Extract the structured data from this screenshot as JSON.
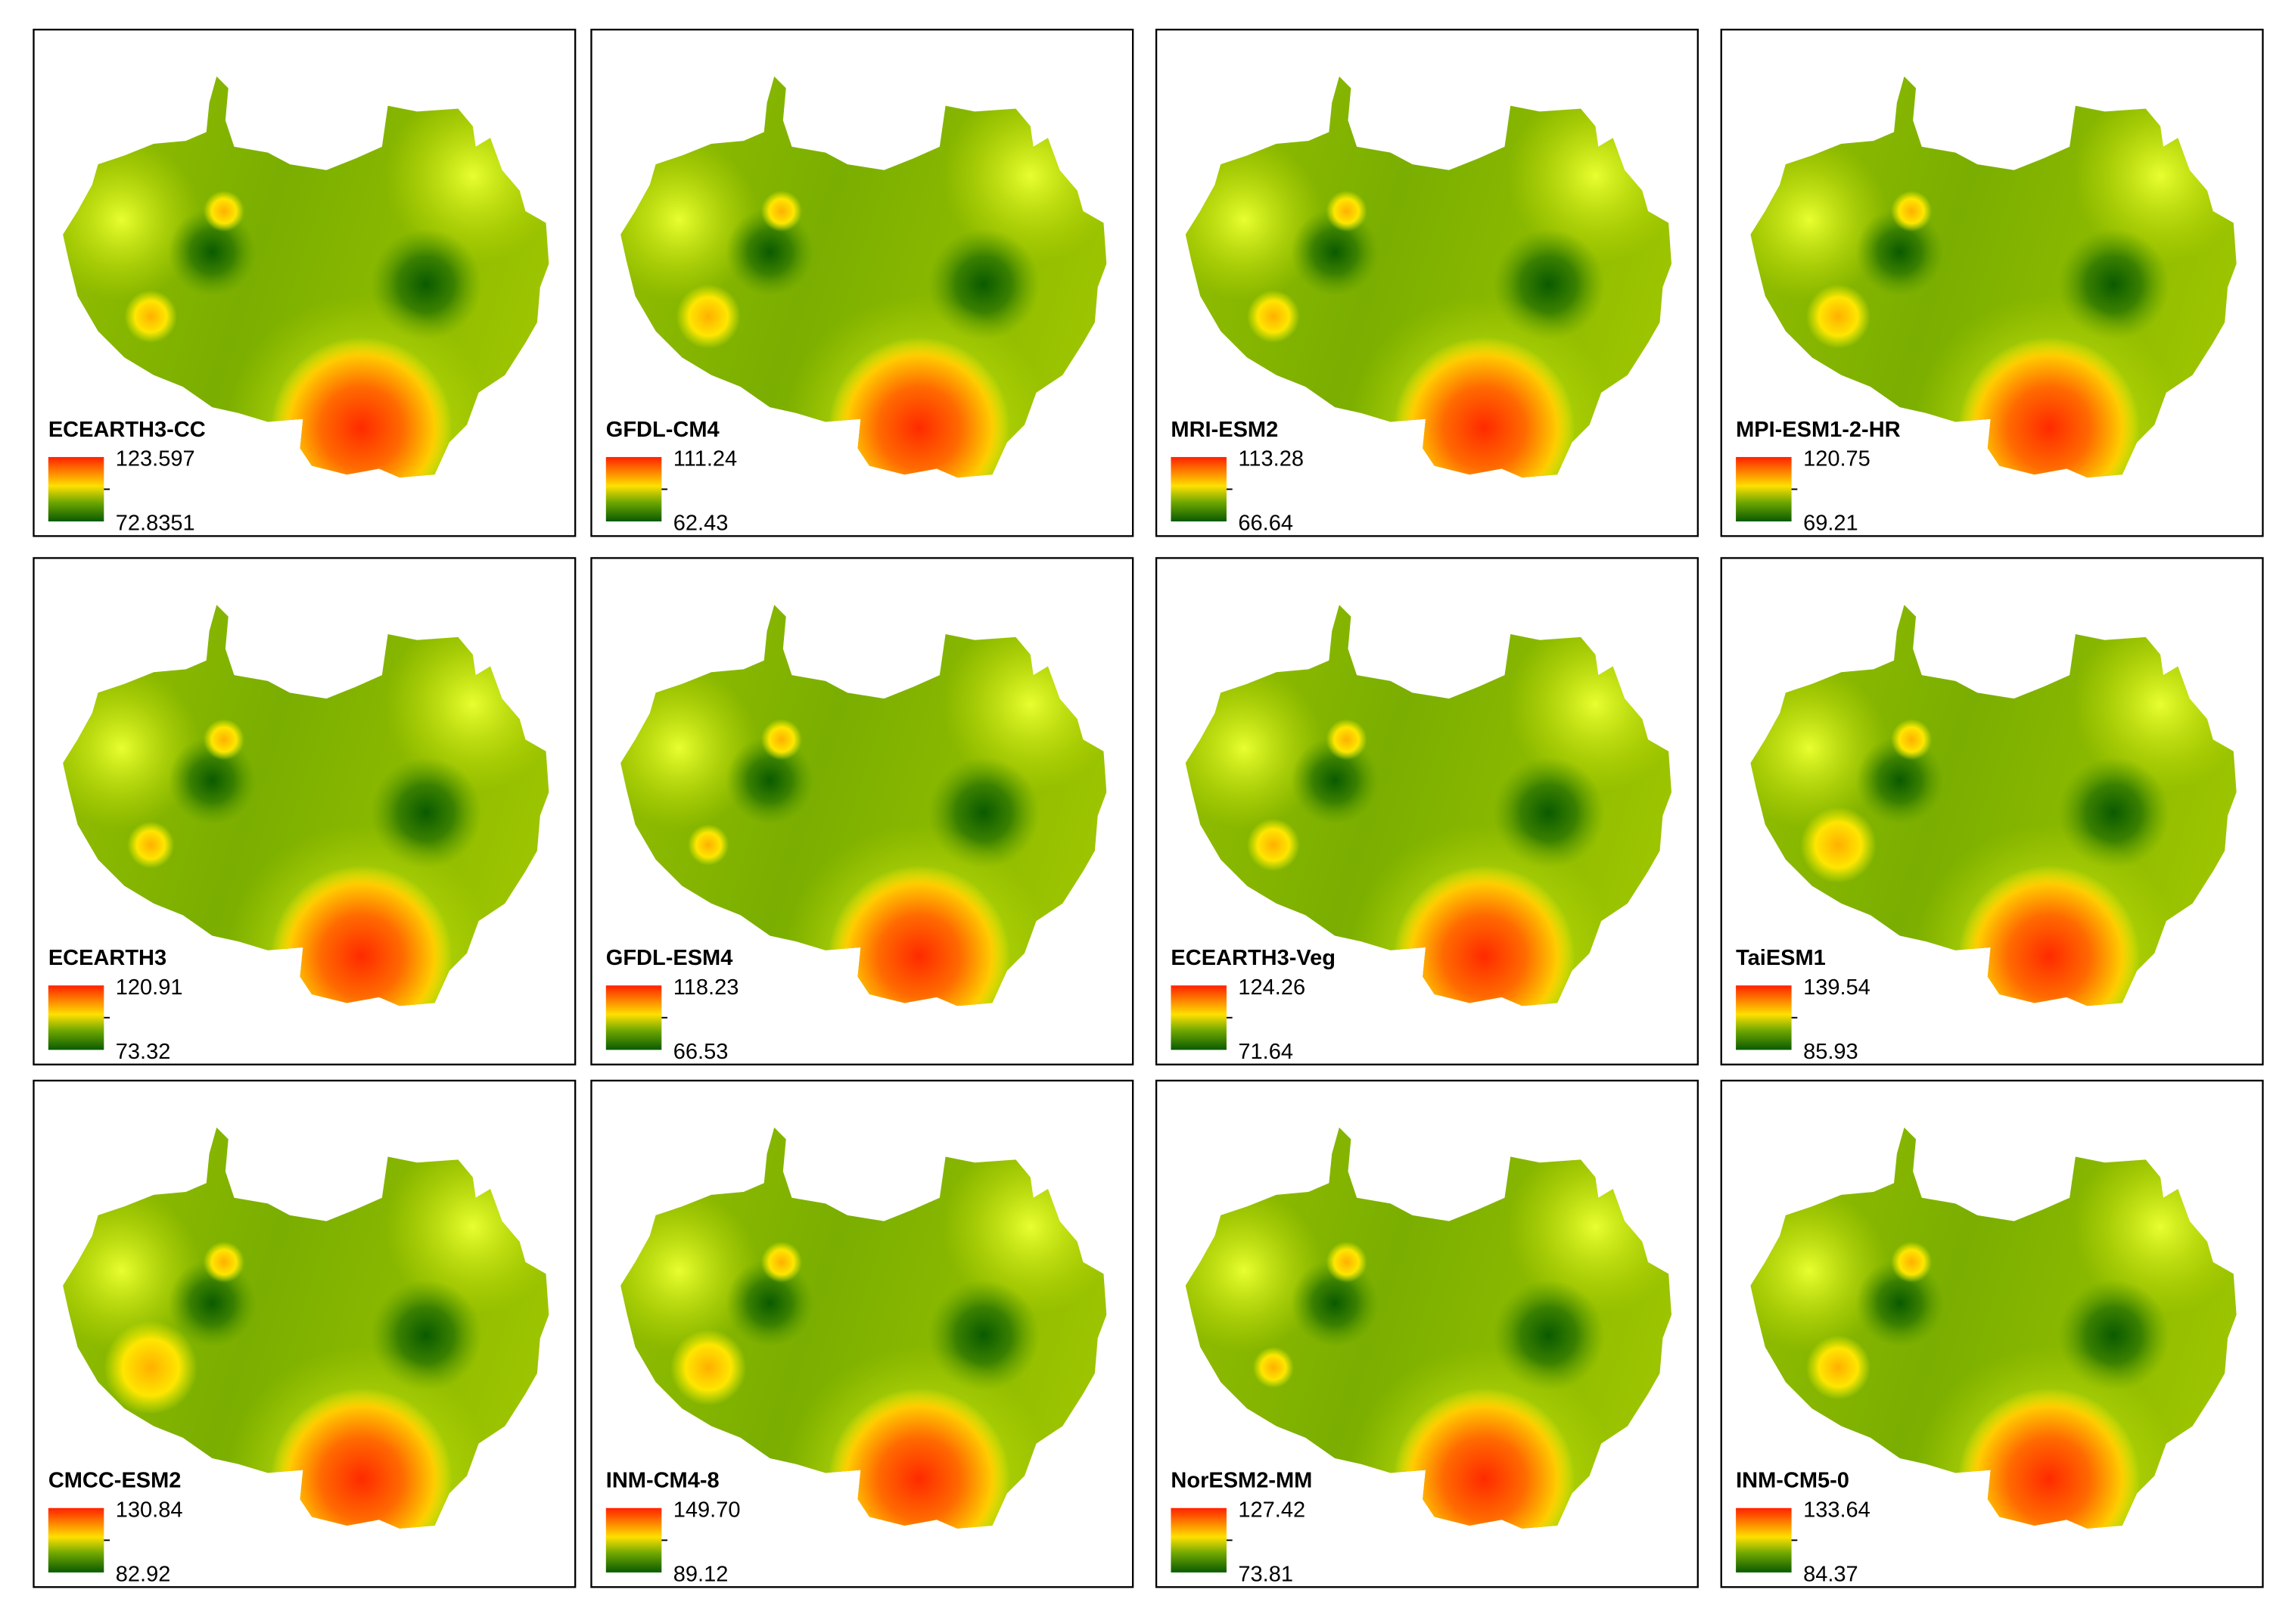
{
  "panels": [
    {
      "title": "ECEARTH3-CC",
      "max": "123.597",
      "min": "72.8351"
    },
    {
      "title": "GFDL-CM4",
      "max": "111.24",
      "min": "62.43"
    },
    {
      "title": "MRI-ESM2",
      "max": "113.28",
      "min": "66.64"
    },
    {
      "title": "MPI-ESM1-2-HR",
      "max": "120.75",
      "min": "69.21"
    },
    {
      "title": "ECEARTH3",
      "max": "120.91",
      "min": "73.32"
    },
    {
      "title": "GFDL-ESM4",
      "max": "118.23",
      "min": "66.53"
    },
    {
      "title": "ECEARTH3-Veg",
      "max": "124.26",
      "min": "71.64"
    },
    {
      "title": "TaiESM1",
      "max": "139.54",
      "min": "85.93"
    },
    {
      "title": "CMCC-ESM2",
      "max": "130.84",
      "min": "82.92"
    },
    {
      "title": "INM-CM4-8",
      "max": "149.70",
      "min": "89.12"
    },
    {
      "title": "NorESM2-MM",
      "max": "127.42",
      "min": "73.81"
    },
    {
      "title": "INM-CM5-0",
      "max": "133.64",
      "min": "84.37"
    }
  ]
}
